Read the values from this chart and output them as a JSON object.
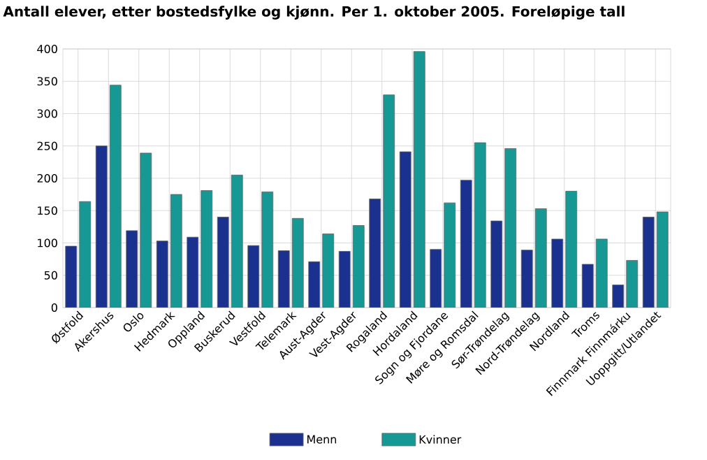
{
  "chart_data": {
    "type": "bar",
    "title": "Antall elever, etter bostedsfylke og kjønn. Per 1. oktober 2005. Foreløpige tall",
    "categories": [
      "Østfold",
      "Akershus",
      "Oslo",
      "Hedmark",
      "Oppland",
      "Buskerud",
      "Vestfold",
      "Telemark",
      "Aust-Agder",
      "Vest-Agder",
      "Rogaland",
      "Hordaland",
      "Sogn og Fjordane",
      "Møre og Romsdal",
      "Sør-Trøndelag",
      "Nord-Trøndelag",
      "Nordland",
      "Troms",
      "Finnmark Finnmárku",
      "Uoppgitt/Utlandet"
    ],
    "series": [
      {
        "name": "Menn",
        "color": "#1a318f",
        "values": [
          95,
          250,
          119,
          103,
          109,
          140,
          96,
          88,
          71,
          87,
          168,
          241,
          90,
          197,
          134,
          89,
          106,
          67,
          35,
          140
        ]
      },
      {
        "name": "Kvinner",
        "color": "#169894",
        "values": [
          164,
          344,
          239,
          175,
          181,
          205,
          179,
          138,
          114,
          127,
          329,
          396,
          162,
          255,
          246,
          153,
          180,
          106,
          73,
          148
        ]
      }
    ],
    "ylim": [
      0,
      400
    ],
    "yticks": [
      0,
      50,
      100,
      150,
      200,
      250,
      300,
      350,
      400
    ],
    "grid": true,
    "legend": "bottom"
  }
}
